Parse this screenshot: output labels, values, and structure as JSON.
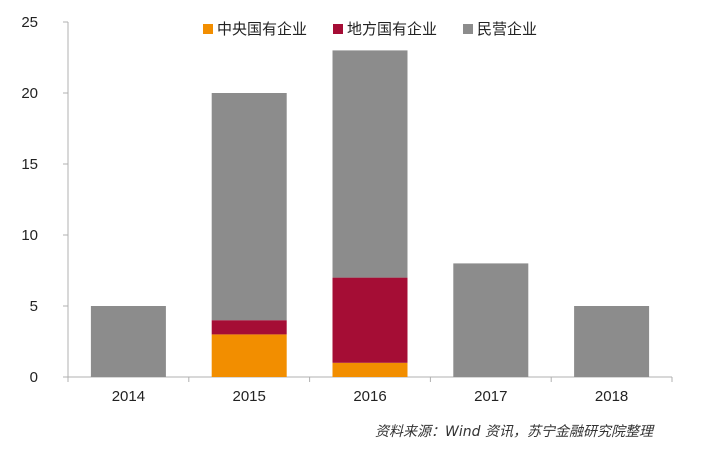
{
  "chart_data": {
    "type": "bar",
    "stacked": true,
    "categories": [
      "2014",
      "2015",
      "2016",
      "2017",
      "2018"
    ],
    "series": [
      {
        "name": "中央国有企业",
        "color": "#f28e00",
        "values": [
          0,
          3,
          1,
          0,
          0
        ]
      },
      {
        "name": "地方国有企业",
        "color": "#a50d35",
        "values": [
          0,
          1,
          6,
          0,
          0
        ]
      },
      {
        "name": "民营企业",
        "color": "#8c8c8c",
        "values": [
          5,
          16,
          16,
          8,
          5
        ]
      }
    ],
    "ylim": [
      0,
      25
    ],
    "yticks": [
      0,
      5,
      10,
      15,
      20,
      25
    ],
    "grid": false,
    "legend_position": "top-center",
    "title": "",
    "xlabel": "",
    "ylabel": ""
  },
  "source_note": "资料来源：Wind 资讯，苏宁金融研究院整理"
}
